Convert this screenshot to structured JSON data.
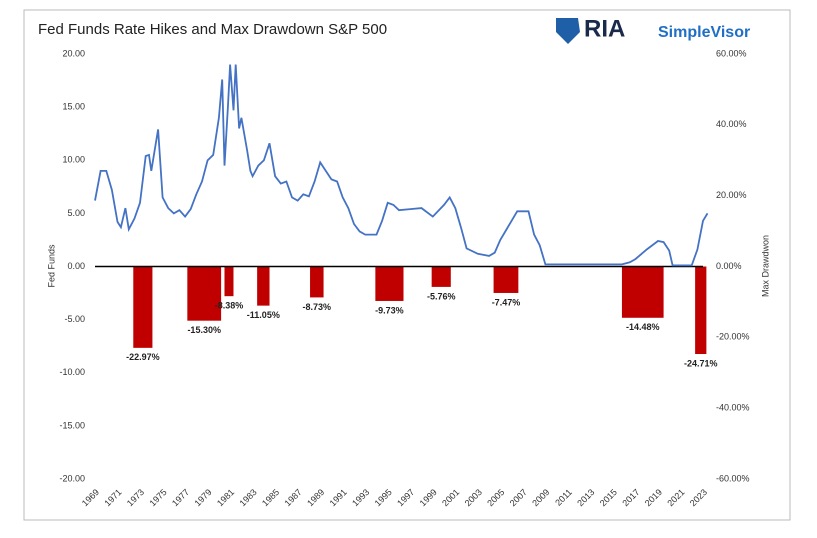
{
  "chart_data": {
    "type": "combo",
    "title": "Fed Funds Rate Hikes and Max Drawdown S&P 500",
    "logo": {
      "mark": "RIA",
      "text": "SimpleVisor"
    },
    "y_label": "Fed Funds",
    "y2_label": "Max Drawdwon",
    "xlim": [
      1969,
      2023
    ],
    "xticks": [
      1969,
      1971,
      1973,
      1975,
      1977,
      1979,
      1981,
      1983,
      1985,
      1987,
      1989,
      1991,
      1993,
      1995,
      1997,
      1999,
      2001,
      2003,
      2005,
      2007,
      2009,
      2011,
      2013,
      2015,
      2017,
      2019,
      2021,
      2023
    ],
    "ylim": [
      -20,
      20
    ],
    "yticks": [
      {
        "value": -20,
        "label": "-20.00"
      },
      {
        "value": -15,
        "label": "-15.00"
      },
      {
        "value": -10,
        "label": "-10.00"
      },
      {
        "value": -5,
        "label": "-5.00"
      },
      {
        "value": 0,
        "label": "0.00"
      },
      {
        "value": 5,
        "label": "5.00"
      },
      {
        "value": 10,
        "label": "10.00"
      },
      {
        "value": 15,
        "label": "15.00"
      },
      {
        "value": 20,
        "label": "20.00"
      }
    ],
    "y2lim": [
      -60,
      60
    ],
    "y2ticks": [
      {
        "value": -60,
        "label": "-60.00%"
      },
      {
        "value": -40,
        "label": "-40.00%"
      },
      {
        "value": -20,
        "label": "-20.00%"
      },
      {
        "value": 0,
        "label": "0.00%"
      },
      {
        "value": 20,
        "label": "20.00%"
      },
      {
        "value": 40,
        "label": "40.00%"
      },
      {
        "value": 60,
        "label": "60.00%"
      }
    ],
    "series": [
      {
        "type": "line",
        "color": "#4472c4",
        "x": [
          1969,
          1969.5,
          1970,
          1970.5,
          1971,
          1971.3,
          1971.7,
          1972,
          1972.5,
          1973,
          1973.5,
          1973.8,
          1974,
          1974.6,
          1975,
          1975.5,
          1976,
          1976.5,
          1977,
          1977.5,
          1978,
          1978.5,
          1979,
          1979.5,
          1980,
          1980.3,
          1980.5,
          1980.8,
          1981,
          1981.3,
          1981.5,
          1981.8,
          1982,
          1982.5,
          1982.8,
          1983,
          1983.5,
          1984,
          1984.5,
          1985,
          1985.5,
          1986,
          1986.5,
          1987,
          1987.5,
          1988,
          1988.5,
          1989,
          1989.5,
          1990,
          1990.5,
          1991,
          1991.5,
          1992,
          1992.5,
          1993,
          1994,
          1994.5,
          1995,
          1995.5,
          1996,
          1997,
          1998,
          1999,
          2000,
          2000.5,
          2001,
          2001.5,
          2002,
          2003,
          2004,
          2004.5,
          2005,
          2006,
          2006.5,
          2007.5,
          2008,
          2008.5,
          2009,
          2015.8,
          2016.5,
          2017,
          2018,
          2019,
          2019.5,
          2020,
          2020.3,
          2022,
          2022.5,
          2023,
          2023.4
        ],
        "values": [
          6.2,
          9,
          9,
          7.2,
          4.2,
          3.7,
          5.5,
          3.5,
          4.5,
          6,
          10.4,
          10.5,
          9,
          12.9,
          6.5,
          5.5,
          5,
          5.3,
          4.7,
          5.4,
          6.8,
          8,
          10,
          10.5,
          14,
          17.6,
          9.5,
          15,
          19,
          14.7,
          19,
          13,
          14,
          11,
          9,
          8.5,
          9.5,
          10,
          11.6,
          8.5,
          7.8,
          8,
          6.5,
          6.2,
          6.8,
          6.6,
          8,
          9.8,
          9,
          8.2,
          8,
          6.5,
          5.5,
          4,
          3.3,
          3,
          3,
          4.3,
          6,
          5.8,
          5.3,
          5.4,
          5.5,
          4.7,
          5.8,
          6.5,
          5.5,
          3.7,
          1.7,
          1.2,
          1,
          1.3,
          2.5,
          4.3,
          5.2,
          5.2,
          3,
          2,
          0.2,
          0.2,
          0.4,
          0.7,
          1.6,
          2.4,
          2.3,
          1.5,
          0.1,
          0.1,
          1.6,
          4.3,
          5
        ]
      },
      {
        "type": "bar",
        "axis": "y2",
        "color": "#c00000",
        "periods": [
          [
            1972.4,
            1974.1
          ],
          [
            1977.2,
            1980.2
          ],
          [
            1980.5,
            1981.3
          ],
          [
            1983.4,
            1984.5
          ],
          [
            1988.1,
            1989.3
          ],
          [
            1993.9,
            1996.4
          ],
          [
            1998.9,
            2000.6
          ],
          [
            2004.4,
            2006.6
          ],
          [
            2015.8,
            2019.5
          ],
          [
            2022.3,
            2023.3
          ]
        ],
        "values": [
          -22.97,
          -15.3,
          -8.38,
          -11.05,
          -8.73,
          -9.73,
          -5.76,
          -7.47,
          -14.48,
          -24.71
        ],
        "value_labels": [
          "-22.97%",
          "-15.30%",
          "-8.38%",
          "-11.05%",
          "-8.73%",
          "-9.73%",
          "-5.76%",
          "-7.47%",
          "-14.48%",
          "-24.71%"
        ]
      }
    ]
  }
}
